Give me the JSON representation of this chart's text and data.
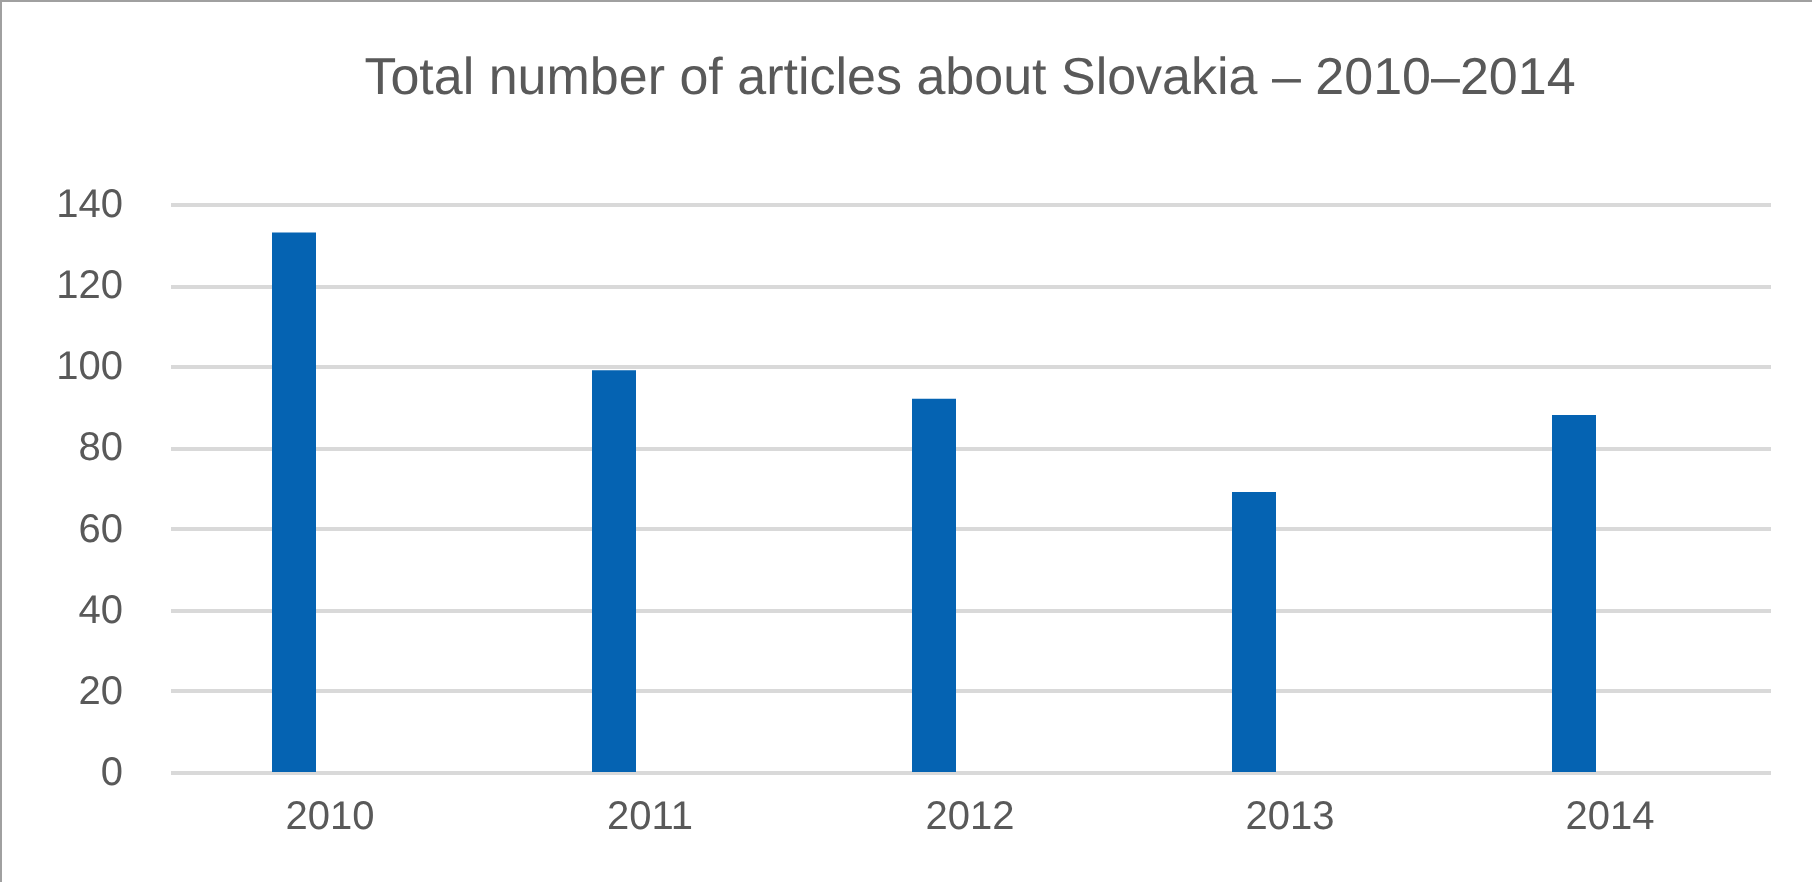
{
  "chart_data": {
    "type": "bar",
    "title": "Total number of articles about Slovakia  –  2010–2014",
    "categories": [
      "2010",
      "2011",
      "2012",
      "2013",
      "2014"
    ],
    "values": [
      133,
      99,
      92,
      69,
      88
    ],
    "color": "#0563b2",
    "ylim": [
      0,
      140
    ],
    "yticks": [
      0,
      20,
      40,
      60,
      80,
      100,
      120,
      140
    ],
    "grid": "y"
  }
}
